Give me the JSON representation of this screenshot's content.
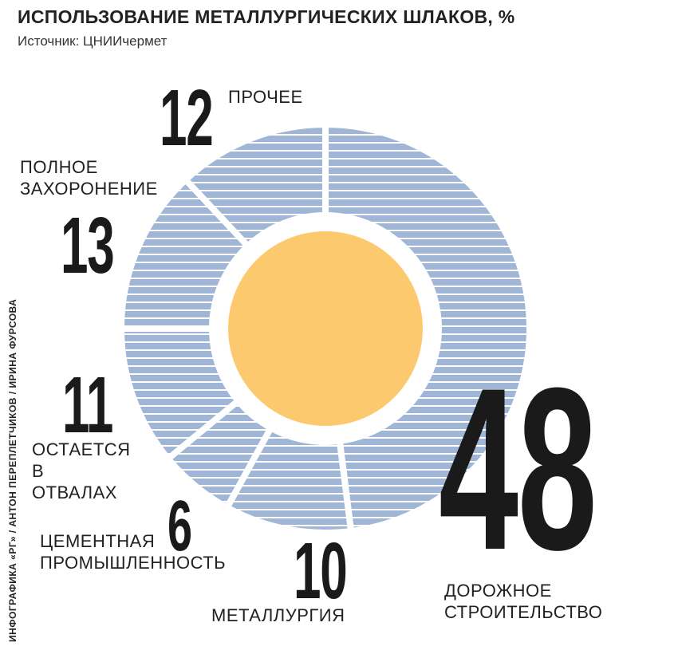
{
  "chart_data": {
    "type": "donut",
    "title": "ИСПОЛЬЗОВАНИЕ МЕТАЛЛУРГИЧЕСКИХ ШЛАКОВ, %",
    "subtitle": "Источник: ЦНИИчермет",
    "credit": "ИНФОГРАФИКА «РГ» / АНТОН ПЕРЕПЛЕТЧИКОВ / ИРИНА ФУРСОВА",
    "categories": [
      "ДОРОЖНОЕ СТРОИТЕЛЬСТВО",
      "МЕТАЛЛУРГИЯ",
      "ЦЕМЕНТНАЯ ПРОМЫШЛЕННОСТЬ",
      "ОСТАЕТСЯ В ОТВАЛАХ",
      "ПОЛНОЕ ЗАХОРОНЕНИЕ",
      "ПРОЧЕЕ"
    ],
    "values": [
      48,
      10,
      6,
      11,
      13,
      12
    ],
    "color": "#9fb6d6",
    "center_color": "#fcc96e"
  }
}
